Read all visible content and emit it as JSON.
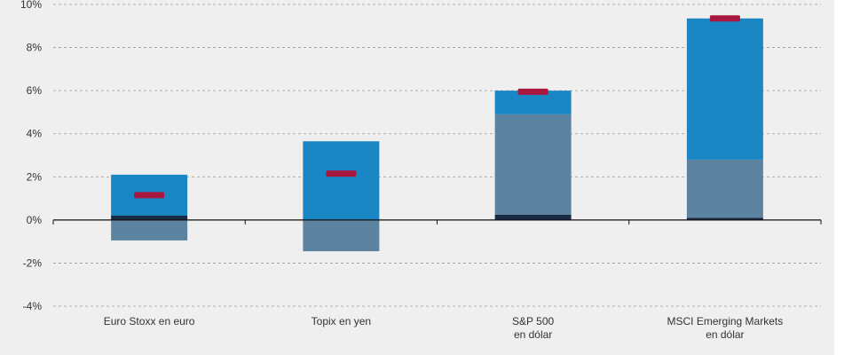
{
  "chart_data": {
    "type": "bar",
    "stacked": true,
    "categories": [
      [
        "Euro Stoxx en euro"
      ],
      [
        "Topix en yen"
      ],
      [
        "S&P 500",
        "en dólar"
      ],
      [
        "MSCI Emerging Markets",
        "en dólar"
      ]
    ],
    "segments": [
      {
        "color": "#1a2a44",
        "values": [
          0.2,
          0.0,
          0.25,
          0.1
        ]
      },
      {
        "color": "#5c84a0",
        "values": [
          -0.95,
          -1.45,
          4.65,
          2.7
        ]
      },
      {
        "color": "#1a86c4",
        "values": [
          1.9,
          3.65,
          1.1,
          6.55
        ]
      }
    ],
    "markers": {
      "color": "#a8173e",
      "values": [
        1.15,
        2.15,
        5.95,
        9.35
      ]
    },
    "ylim": [
      -4,
      10
    ],
    "yticks": [
      -4,
      -2,
      0,
      2,
      4,
      6,
      8,
      10
    ],
    "ytick_labels": [
      "-4%",
      "-2%",
      "0%",
      "2%",
      "4%",
      "6%",
      "8%",
      "10%"
    ],
    "grid": true,
    "title": "",
    "xlabel": "",
    "ylabel": ""
  }
}
